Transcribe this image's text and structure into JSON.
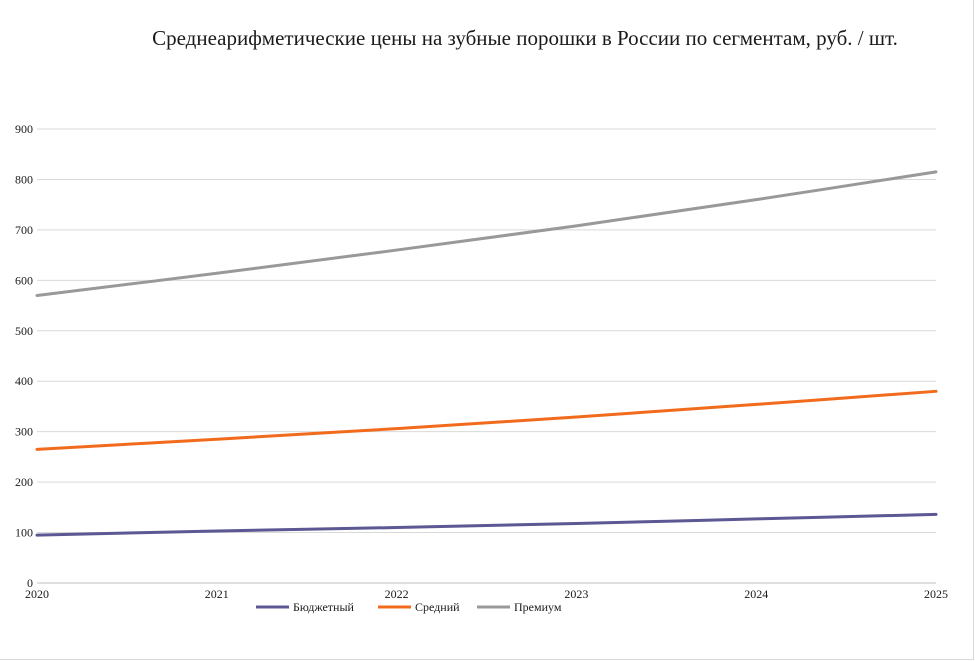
{
  "chart_data": {
    "type": "line",
    "title": "Среднеарифметические цены на зубные порошки в России по сегментам, руб. / шт.",
    "x": [
      "2020",
      "2021",
      "2022",
      "2023",
      "2024",
      "2025"
    ],
    "ylim": [
      0,
      900
    ],
    "yticks": [
      "0",
      "100",
      "200",
      "300",
      "400",
      "500",
      "600",
      "700",
      "800",
      "900"
    ],
    "grid": true,
    "legend_position": "bottom",
    "series": [
      {
        "name": "Бюджетный",
        "color": "#5b5893",
        "values": [
          95,
          103,
          110,
          118,
          127,
          136
        ]
      },
      {
        "name": "Средний",
        "color": "#f26b1d",
        "values": [
          265,
          285,
          306,
          329,
          354,
          380
        ]
      },
      {
        "name": "Премиум",
        "color": "#999999",
        "values": [
          570,
          614,
          660,
          708,
          760,
          815
        ]
      }
    ]
  }
}
